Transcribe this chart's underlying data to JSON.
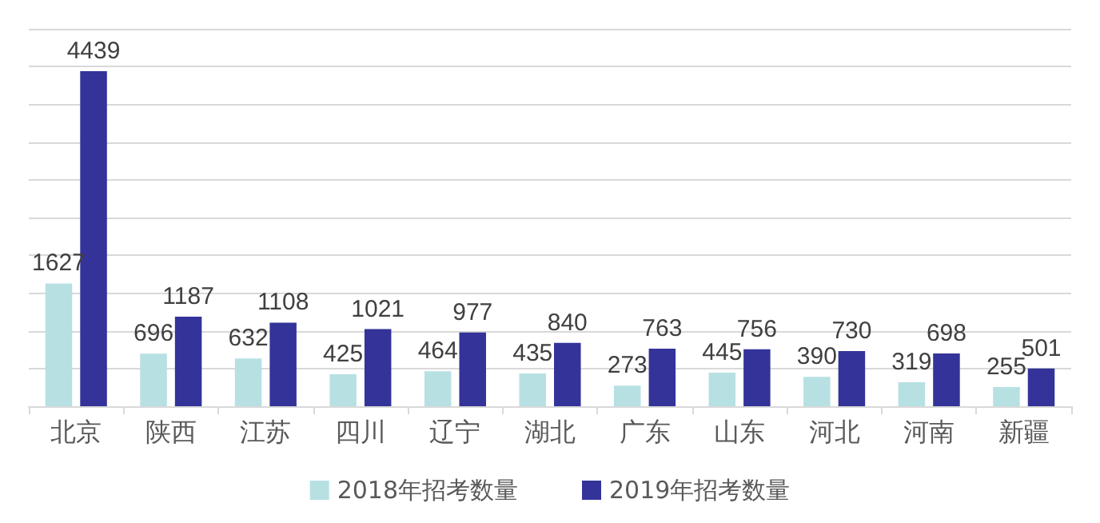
{
  "chart_data": {
    "type": "bar",
    "categories": [
      "北京",
      "陕西",
      "江苏",
      "四川",
      "辽宁",
      "湖北",
      "广东",
      "山东",
      "河北",
      "河南",
      "新疆"
    ],
    "series": [
      {
        "name": "2018年招考数量",
        "color": "#b7e0e3",
        "values": [
          1627,
          696,
          632,
          425,
          464,
          435,
          273,
          445,
          390,
          319,
          255
        ]
      },
      {
        "name": "2019年招考数量",
        "color": "#333399",
        "values": [
          4439,
          1187,
          1108,
          1021,
          977,
          840,
          763,
          756,
          730,
          698,
          501
        ]
      }
    ],
    "ylim": [
      0,
      5000
    ],
    "yticks": [
      {
        "value": 0,
        "label": null
      },
      {
        "value": 500,
        "label": null
      },
      {
        "value": 1000,
        "label": null
      },
      {
        "value": 1500,
        "label": null
      },
      {
        "value": 2000,
        "label": null
      },
      {
        "value": 2500,
        "label": null
      },
      {
        "value": 3000,
        "label": null
      },
      {
        "value": 3500,
        "label": null
      },
      {
        "value": 4000,
        "label": null
      },
      {
        "value": 4500,
        "label": null
      },
      {
        "value": 5000,
        "label": null
      }
    ],
    "tick_labels": "x",
    "grid": "y",
    "legend": "bottom",
    "data_labels": true
  }
}
